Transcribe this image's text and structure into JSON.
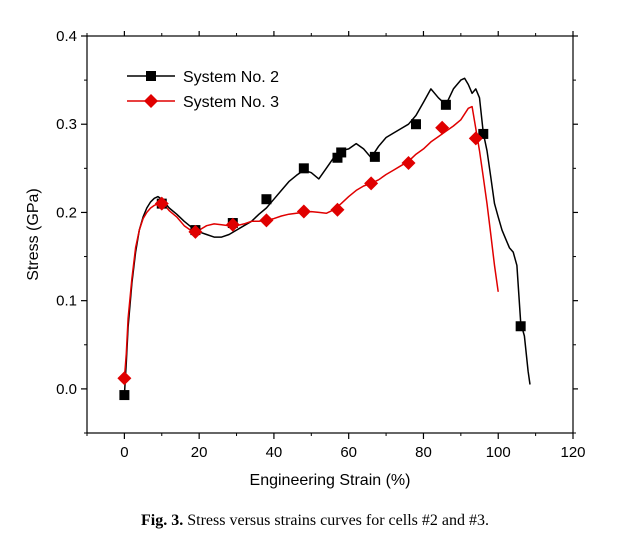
{
  "chart_data": {
    "type": "line",
    "title": "",
    "xlabel": "Engineering Strain (%)",
    "ylabel": "Stress (GPa)",
    "xlim": [
      -10,
      120
    ],
    "ylim": [
      -0.05,
      0.4
    ],
    "xticks": [
      0,
      20,
      40,
      60,
      80,
      100,
      120
    ],
    "yticks": [
      0.0,
      0.1,
      0.2,
      0.3,
      0.4
    ],
    "xtick_labels": [
      "0",
      "20",
      "40",
      "60",
      "80",
      "100",
      "120"
    ],
    "ytick_labels": [
      "0.0",
      "0.1",
      "0.2",
      "0.3",
      "0.4"
    ],
    "grid": false,
    "legend_position": "top-left",
    "series": [
      {
        "name": "System No. 2",
        "color": "#000000",
        "marker": "square",
        "x": [
          0,
          0.5,
          1,
          2,
          3,
          4,
          5,
          6,
          7,
          8,
          9,
          10,
          11,
          12,
          14,
          16,
          18,
          20,
          22,
          24,
          26,
          28,
          30,
          32,
          34,
          36,
          38,
          40,
          42,
          44,
          46,
          48,
          50,
          52,
          54,
          56,
          58,
          60,
          62,
          64,
          66,
          68,
          70,
          72,
          74,
          76,
          78,
          80,
          82,
          84,
          86,
          88,
          90,
          91,
          92,
          93,
          94,
          95,
          96,
          97,
          98,
          99,
          100,
          101,
          102,
          103,
          104,
          105,
          106,
          107,
          108,
          108.5
        ],
        "y": [
          -0.007,
          0.03,
          0.07,
          0.12,
          0.155,
          0.18,
          0.195,
          0.205,
          0.212,
          0.216,
          0.218,
          0.215,
          0.21,
          0.205,
          0.198,
          0.19,
          0.183,
          0.178,
          0.175,
          0.172,
          0.172,
          0.175,
          0.18,
          0.185,
          0.19,
          0.198,
          0.205,
          0.215,
          0.225,
          0.235,
          0.242,
          0.248,
          0.245,
          0.238,
          0.25,
          0.262,
          0.27,
          0.272,
          0.278,
          0.272,
          0.262,
          0.275,
          0.285,
          0.29,
          0.295,
          0.3,
          0.31,
          0.325,
          0.34,
          0.33,
          0.322,
          0.34,
          0.35,
          0.352,
          0.345,
          0.335,
          0.34,
          0.33,
          0.29,
          0.27,
          0.24,
          0.21,
          0.195,
          0.18,
          0.17,
          0.16,
          0.155,
          0.14,
          0.075,
          0.06,
          0.02,
          0.005
        ]
      },
      {
        "name": "System No. 3",
        "color": "#e00000",
        "marker": "diamond",
        "x": [
          0,
          0.5,
          1,
          2,
          3,
          4,
          5,
          6,
          7,
          8,
          9,
          10,
          11,
          12,
          14,
          16,
          18,
          20,
          22,
          24,
          26,
          28,
          30,
          32,
          34,
          36,
          38,
          40,
          42,
          44,
          46,
          48,
          50,
          52,
          54,
          56,
          58,
          60,
          62,
          64,
          66,
          68,
          70,
          72,
          74,
          76,
          78,
          80,
          82,
          84,
          86,
          88,
          90,
          92,
          93,
          94,
          95,
          96,
          97,
          98,
          99,
          100
        ],
        "y": [
          0.012,
          0.04,
          0.08,
          0.125,
          0.16,
          0.18,
          0.193,
          0.2,
          0.205,
          0.208,
          0.21,
          0.21,
          0.207,
          0.202,
          0.195,
          0.185,
          0.179,
          0.18,
          0.185,
          0.187,
          0.186,
          0.185,
          0.185,
          0.187,
          0.19,
          0.19,
          0.191,
          0.193,
          0.196,
          0.198,
          0.199,
          0.2,
          0.201,
          0.2,
          0.199,
          0.203,
          0.21,
          0.218,
          0.225,
          0.23,
          0.233,
          0.237,
          0.243,
          0.248,
          0.253,
          0.258,
          0.266,
          0.272,
          0.28,
          0.286,
          0.292,
          0.298,
          0.305,
          0.318,
          0.32,
          0.295,
          0.27,
          0.24,
          0.21,
          0.175,
          0.14,
          0.11
        ]
      }
    ],
    "marker_points": {
      "System No. 2": {
        "x": [
          0,
          10,
          19,
          29,
          38,
          48,
          57,
          58,
          67,
          78,
          86,
          96,
          106
        ],
        "y": [
          -0.007,
          0.21,
          0.18,
          0.188,
          0.215,
          0.25,
          0.262,
          0.268,
          0.263,
          0.3,
          0.322,
          0.289,
          0.071
        ]
      },
      "System No. 3": {
        "x": [
          0,
          10,
          19,
          29,
          38,
          48,
          57,
          66,
          76,
          85,
          94
        ],
        "y": [
          0.012,
          0.21,
          0.178,
          0.186,
          0.191,
          0.201,
          0.203,
          0.233,
          0.256,
          0.296,
          0.284
        ]
      }
    }
  },
  "caption": {
    "label": "Fig. 3.",
    "text": " Stress versus strains curves for cells #2 and #3."
  }
}
